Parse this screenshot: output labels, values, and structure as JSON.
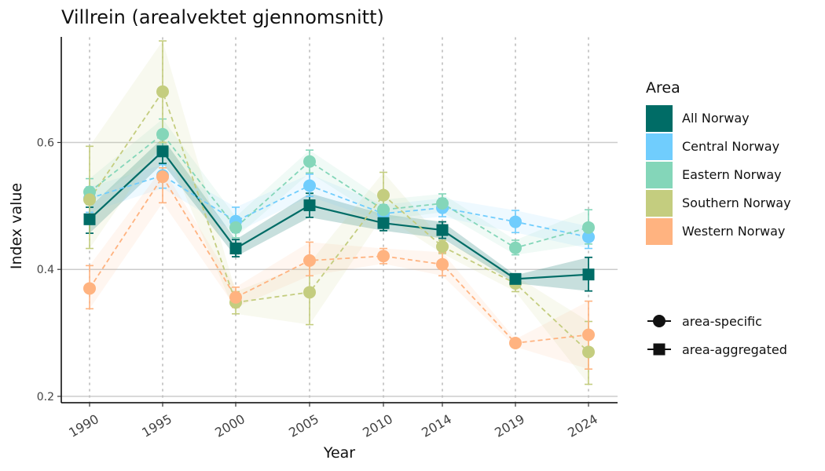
{
  "chart_data": {
    "type": "line",
    "title": "Villrein (arealvektet gjennomsnitt)",
    "xlabel": "Year",
    "ylabel": "Index value",
    "categories": [
      "1990",
      "1995",
      "2000",
      "2005",
      "2010",
      "2014",
      "2019",
      "2024"
    ],
    "ylim": [
      0.19,
      0.775
    ],
    "yticks": [
      0.2,
      0.4,
      0.6
    ],
    "ytick_labels": [
      "0.2",
      "0.4",
      "0.6"
    ],
    "grid": "horizontal-major-and-vertical-dotted",
    "legend": {
      "title": "Area",
      "placement": "right",
      "shape_legend": [
        "area-specific",
        "area-aggregated"
      ]
    },
    "series": [
      {
        "name": "All Norway",
        "color": "#006C66",
        "kind": "area-aggregated",
        "values": [
          0.479,
          0.586,
          0.433,
          0.501,
          0.473,
          0.462,
          0.385,
          0.392
        ],
        "lower": [
          0.457,
          0.567,
          0.42,
          0.482,
          0.461,
          0.449,
          0.378,
          0.366
        ],
        "upper": [
          0.498,
          0.607,
          0.447,
          0.52,
          0.487,
          0.475,
          0.391,
          0.419
        ],
        "band_lower": [
          0.457,
          0.567,
          0.42,
          0.482,
          0.461,
          0.449,
          0.378,
          0.366
        ],
        "band_upper": [
          0.498,
          0.607,
          0.447,
          0.52,
          0.487,
          0.475,
          0.391,
          0.419
        ]
      },
      {
        "name": "Central Norway",
        "color": "#70CDFD",
        "kind": "area-specific",
        "values": [
          0.512,
          0.548,
          0.476,
          0.532,
          0.488,
          0.497,
          0.475,
          0.451
        ],
        "lower": [
          0.49,
          0.528,
          0.458,
          0.515,
          0.475,
          0.483,
          0.458,
          0.433
        ],
        "upper": [
          0.53,
          0.565,
          0.498,
          0.55,
          0.502,
          0.512,
          0.493,
          0.468
        ],
        "band_lower": [
          0.49,
          0.528,
          0.458,
          0.515,
          0.475,
          0.483,
          0.458,
          0.433
        ],
        "band_upper": [
          0.53,
          0.565,
          0.498,
          0.55,
          0.502,
          0.512,
          0.493,
          0.468
        ]
      },
      {
        "name": "Eastern Norway",
        "color": "#84D6B9",
        "kind": "area-specific",
        "values": [
          0.522,
          0.613,
          0.466,
          0.57,
          0.494,
          0.504,
          0.434,
          0.466
        ],
        "lower": [
          0.502,
          0.588,
          0.45,
          0.552,
          0.478,
          0.49,
          0.423,
          0.44
        ],
        "upper": [
          0.543,
          0.637,
          0.483,
          0.588,
          0.51,
          0.519,
          0.446,
          0.494
        ],
        "band_lower": [
          0.502,
          0.588,
          0.45,
          0.552,
          0.478,
          0.49,
          0.423,
          0.44
        ],
        "band_upper": [
          0.543,
          0.637,
          0.483,
          0.588,
          0.51,
          0.519,
          0.446,
          0.494
        ]
      },
      {
        "name": "Southern Norway",
        "color": "#C4CD7F",
        "kind": "area-specific",
        "values": [
          0.51,
          0.68,
          0.348,
          0.364,
          0.517,
          0.436,
          0.378,
          0.27
        ],
        "lower": [
          0.433,
          0.6,
          0.33,
          0.313,
          0.485,
          0.425,
          0.365,
          0.219
        ],
        "upper": [
          0.594,
          0.76,
          0.365,
          0.41,
          0.553,
          0.446,
          0.39,
          0.318
        ],
        "band_lower": [
          0.433,
          0.6,
          0.33,
          0.313,
          0.485,
          0.425,
          0.365,
          0.219
        ],
        "band_upper": [
          0.594,
          0.76,
          0.365,
          0.41,
          0.553,
          0.446,
          0.39,
          0.318
        ]
      },
      {
        "name": "Western Norway",
        "color": "#FFB380",
        "kind": "area-specific",
        "values": [
          0.37,
          0.546,
          0.356,
          0.414,
          0.421,
          0.408,
          0.284,
          0.297
        ],
        "lower": [
          0.338,
          0.505,
          0.34,
          0.39,
          0.409,
          0.39,
          0.278,
          0.243
        ],
        "upper": [
          0.406,
          0.56,
          0.372,
          0.443,
          0.433,
          0.427,
          0.29,
          0.35
        ],
        "band_lower": [
          0.338,
          0.505,
          0.34,
          0.39,
          0.409,
          0.39,
          0.278,
          0.243
        ],
        "band_upper": [
          0.406,
          0.56,
          0.372,
          0.443,
          0.433,
          0.427,
          0.29,
          0.35
        ]
      }
    ]
  }
}
